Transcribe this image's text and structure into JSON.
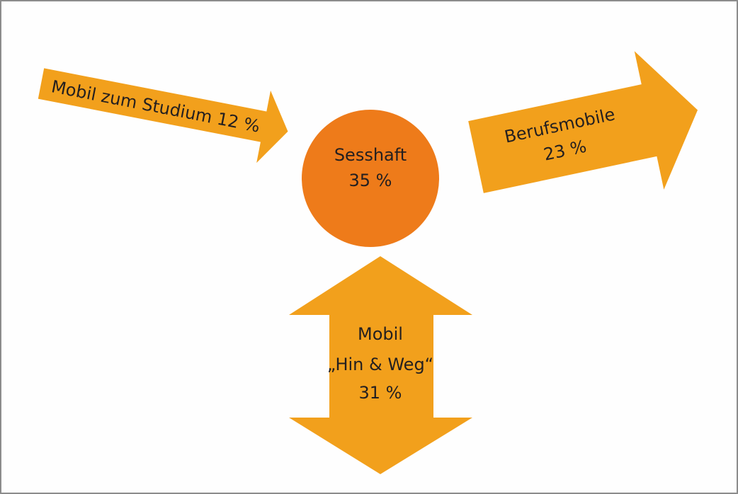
{
  "nodes": [
    {
      "lines": [
        "Mobil zum Studium 12 %"
      ]
    },
    {
      "lines": [
        "Sesshaft",
        "35 %"
      ]
    },
    {
      "lines": [
        "Berufsmobile",
        "23 %"
      ]
    },
    {
      "lines": [
        "Mobil",
        "„Hin & Weg“",
        "31 %"
      ]
    }
  ]
}
